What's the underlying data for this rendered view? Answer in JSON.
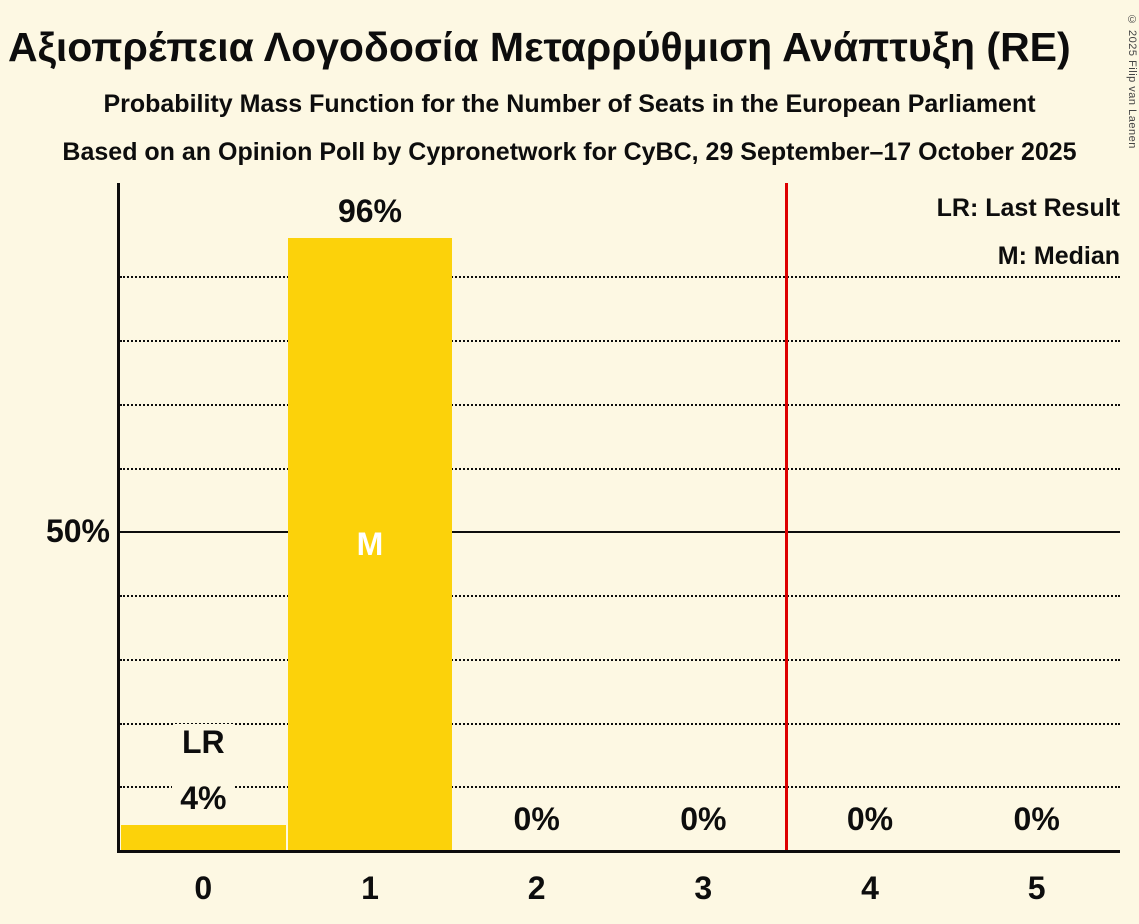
{
  "page": {
    "title": "Αξιοπρέπεια Λογοδοσία Μεταρρύθμιση Ανάπτυξη (RE)",
    "subtitle1": "Probability Mass Function for the Number of Seats in the European Parliament",
    "subtitle2": "Based on an Opinion Poll by Cypronetwork for CyBC, 29 September–17 October 2025",
    "copyright": "© 2025 Filip van Laenen"
  },
  "legend": {
    "last_result": "LR: Last Result",
    "median": "M: Median"
  },
  "colors": {
    "background": "#fdf8e3",
    "text": "#0d0d0d",
    "bar": "#fcd20a",
    "majority_line": "#dd0000",
    "median_text": "#ffffff"
  },
  "chart_data": {
    "type": "bar",
    "title": "Αξιοπρέπεια Λογοδοσία Μεταρρύθμιση Ανάπτυξη (RE)",
    "xlabel": "",
    "ylabel": "",
    "categories": [
      "0",
      "1",
      "2",
      "3",
      "4",
      "5"
    ],
    "values": [
      4,
      96,
      0,
      0,
      0,
      0
    ],
    "ylim": [
      0,
      104
    ],
    "y_tick": {
      "percent": 50,
      "label": "50%"
    },
    "dotted_gridlines_percent": [
      10,
      20,
      30,
      40,
      60,
      70,
      80,
      90
    ],
    "solid_gridline_percent": 50,
    "median_category_index": 1,
    "median_marker": "M",
    "last_result_category_index": 0,
    "last_result_marker": "LR",
    "majority_line_seats": 3.5,
    "grid": "horizontal dotted",
    "legend_position": "top-right"
  }
}
